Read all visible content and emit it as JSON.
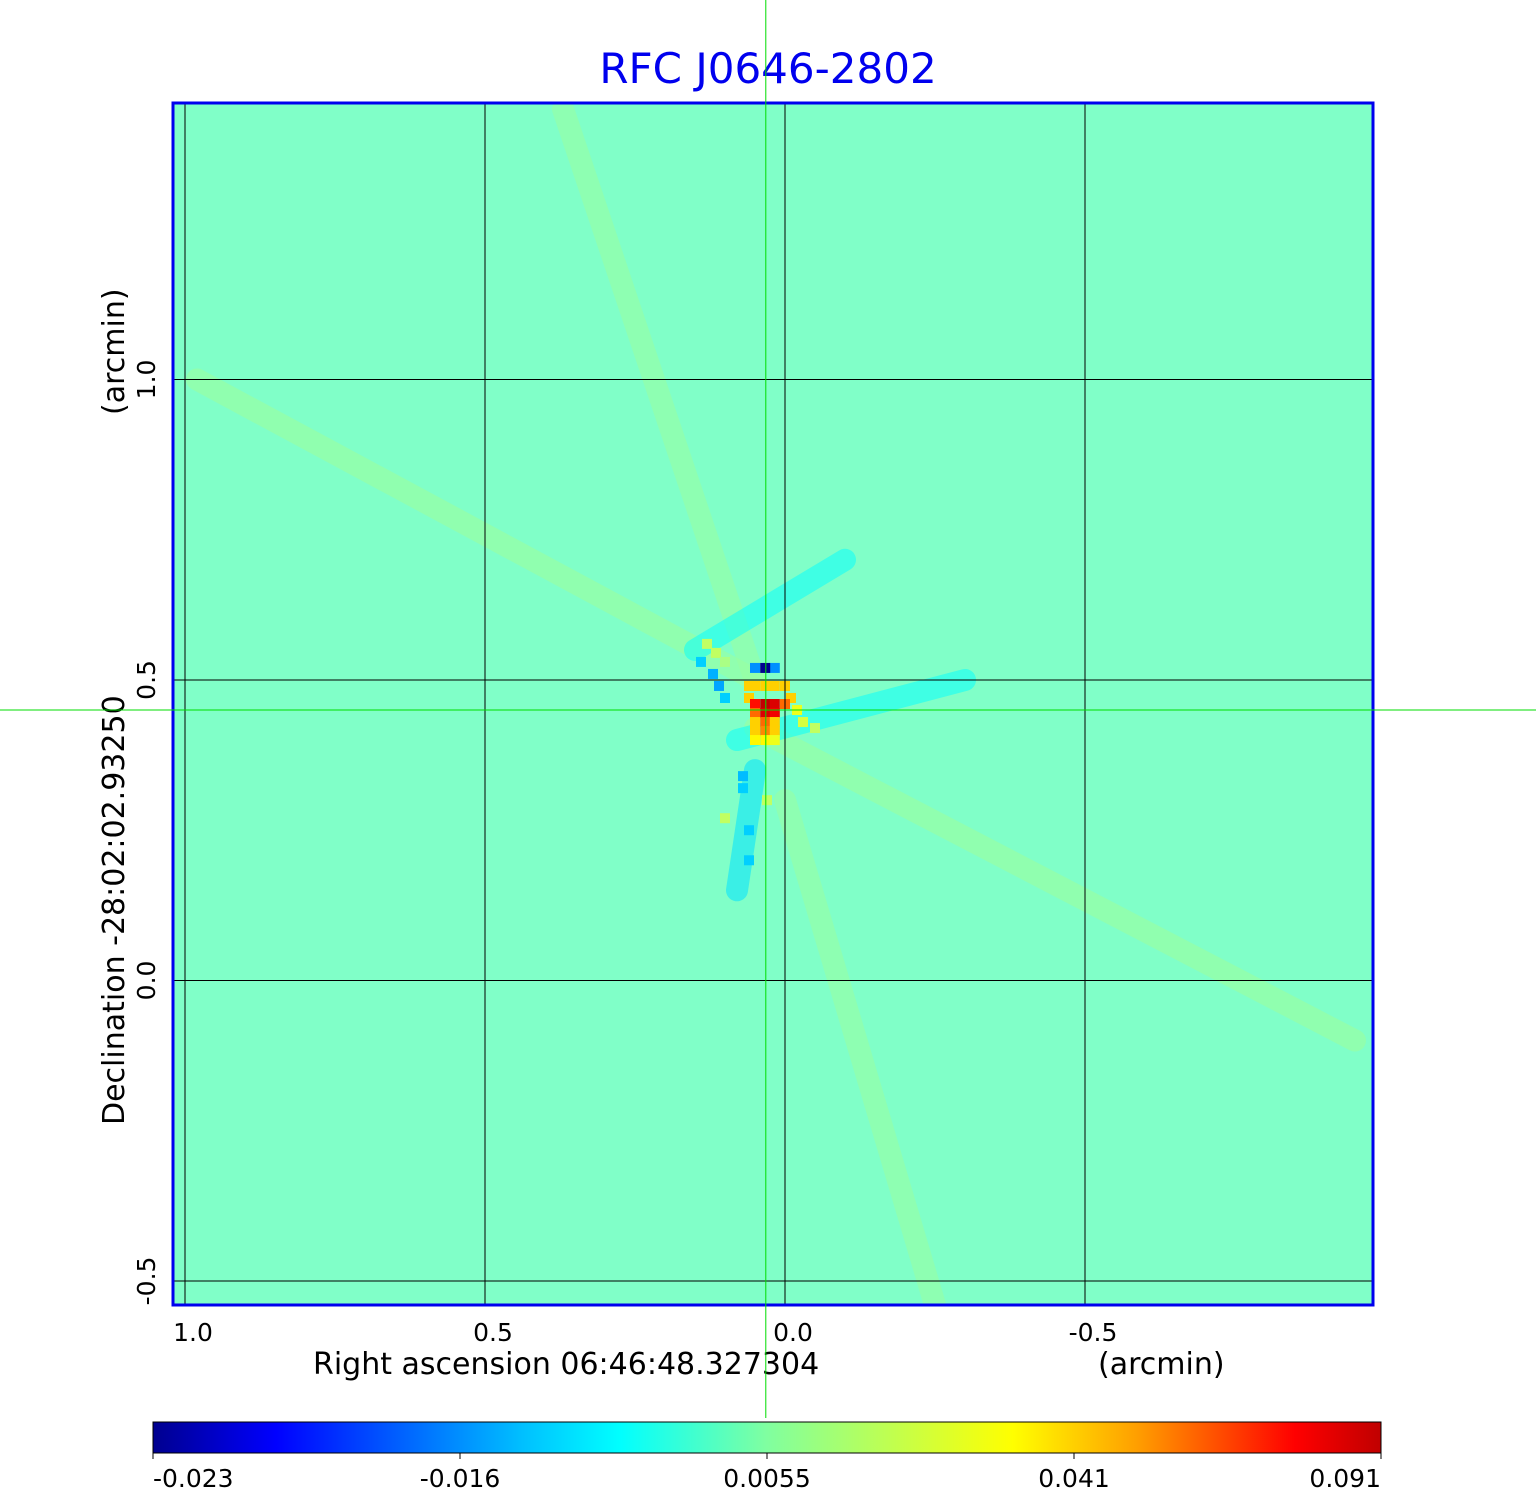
{
  "chart_data": {
    "type": "heatmap",
    "title": "RFC J0646-2802",
    "xlabel": "Right ascension  06:46:48.327304",
    "xunit": "(arcmin)",
    "ylabel": "Declination  -28:02:02.93250",
    "yunit": "(arcmin)",
    "xlim": [
      1.02,
      -0.98
    ],
    "ylim": [
      -0.54,
      1.46
    ],
    "xticks": [
      {
        "value": 1.0,
        "label": "1.0"
      },
      {
        "value": 0.5,
        "label": "0.5"
      },
      {
        "value": 0.0,
        "label": "0.0"
      },
      {
        "value": -0.5,
        "label": "-0.5"
      }
    ],
    "yticks": [
      {
        "value": 1.0,
        "label": "1.0"
      },
      {
        "value": 0.5,
        "label": "0.5"
      },
      {
        "value": 0.0,
        "label": "0.0"
      },
      {
        "value": -0.5,
        "label": "-0.5"
      }
    ],
    "grid": true,
    "crosshair": {
      "x": 0.032,
      "y": 0.45
    },
    "colormap": "jet",
    "colorbar": {
      "ticks": [
        "-0.023",
        "-0.016",
        "0.0055",
        "0.041",
        "0.091"
      ],
      "values": [
        -0.023,
        -0.016,
        0.0055,
        0.041,
        0.091
      ],
      "placement": "bottom"
    },
    "background_value": 0.0055,
    "streaks": [
      {
        "x1": 0.98,
        "y1": 1.0,
        "x2": 0.05,
        "y2": 0.5,
        "value": 0.012
      },
      {
        "x1": 0.05,
        "y1": 0.42,
        "x2": -0.95,
        "y2": -0.1,
        "value": 0.012
      },
      {
        "x1": 0.37,
        "y1": 1.45,
        "x2": 0.05,
        "y2": 0.5,
        "value": 0.011
      },
      {
        "x1": 0.0,
        "y1": 0.3,
        "x2": -0.25,
        "y2": -0.54,
        "value": 0.011
      },
      {
        "x1": 0.15,
        "y1": 0.55,
        "x2": -0.1,
        "y2": 0.7,
        "value": -0.004
      },
      {
        "x1": 0.05,
        "y1": 0.35,
        "x2": 0.08,
        "y2": 0.15,
        "value": -0.008
      },
      {
        "x1": 0.08,
        "y1": 0.4,
        "x2": -0.3,
        "y2": 0.5,
        "value": -0.004
      }
    ],
    "pixels": [
      {
        "x": 0.14,
        "y": 0.53,
        "v": -0.01
      },
      {
        "x": 0.12,
        "y": 0.51,
        "v": -0.013
      },
      {
        "x": 0.11,
        "y": 0.49,
        "v": -0.014
      },
      {
        "x": 0.1,
        "y": 0.47,
        "v": -0.01
      },
      {
        "x": 0.13,
        "y": 0.56,
        "v": 0.02
      },
      {
        "x": 0.115,
        "y": 0.545,
        "v": 0.02
      },
      {
        "x": 0.1,
        "y": 0.53,
        "v": 0.015
      },
      {
        "x": 0.05,
        "y": 0.52,
        "v": -0.016
      },
      {
        "x": 0.017,
        "y": 0.52,
        "v": -0.016
      },
      {
        "x": 0.033,
        "y": 0.52,
        "v": -0.023
      },
      {
        "x": 0.06,
        "y": 0.49,
        "v": 0.041
      },
      {
        "x": 0.0,
        "y": 0.49,
        "v": 0.041
      },
      {
        "x": 0.033,
        "y": 0.49,
        "v": 0.041
      },
      {
        "x": 0.017,
        "y": 0.49,
        "v": 0.041
      },
      {
        "x": 0.05,
        "y": 0.49,
        "v": 0.041
      },
      {
        "x": -0.01,
        "y": 0.47,
        "v": 0.041
      },
      {
        "x": 0.06,
        "y": 0.47,
        "v": 0.041
      },
      {
        "x": -0.02,
        "y": 0.45,
        "v": 0.03
      },
      {
        "x": 0.05,
        "y": 0.46,
        "v": 0.075
      },
      {
        "x": 0.033,
        "y": 0.46,
        "v": 0.091
      },
      {
        "x": 0.017,
        "y": 0.46,
        "v": 0.085
      },
      {
        "x": 0.0,
        "y": 0.46,
        "v": 0.06
      },
      {
        "x": 0.05,
        "y": 0.445,
        "v": 0.06
      },
      {
        "x": 0.033,
        "y": 0.445,
        "v": 0.085
      },
      {
        "x": 0.017,
        "y": 0.445,
        "v": 0.08
      },
      {
        "x": 0.05,
        "y": 0.43,
        "v": 0.041
      },
      {
        "x": 0.033,
        "y": 0.43,
        "v": 0.06
      },
      {
        "x": 0.017,
        "y": 0.43,
        "v": 0.041
      },
      {
        "x": 0.05,
        "y": 0.415,
        "v": 0.041
      },
      {
        "x": 0.033,
        "y": 0.415,
        "v": 0.055
      },
      {
        "x": 0.017,
        "y": 0.415,
        "v": 0.041
      },
      {
        "x": 0.033,
        "y": 0.4,
        "v": 0.035
      },
      {
        "x": 0.05,
        "y": 0.4,
        "v": 0.035
      },
      {
        "x": 0.017,
        "y": 0.4,
        "v": 0.03
      },
      {
        "x": -0.03,
        "y": 0.43,
        "v": 0.025
      },
      {
        "x": -0.05,
        "y": 0.42,
        "v": 0.02
      },
      {
        "x": 0.07,
        "y": 0.34,
        "v": -0.012
      },
      {
        "x": 0.07,
        "y": 0.32,
        "v": -0.01
      },
      {
        "x": 0.06,
        "y": 0.25,
        "v": -0.01
      },
      {
        "x": 0.06,
        "y": 0.2,
        "v": -0.01
      },
      {
        "x": 0.1,
        "y": 0.27,
        "v": 0.02
      },
      {
        "x": 0.03,
        "y": 0.3,
        "v": 0.02
      }
    ]
  }
}
